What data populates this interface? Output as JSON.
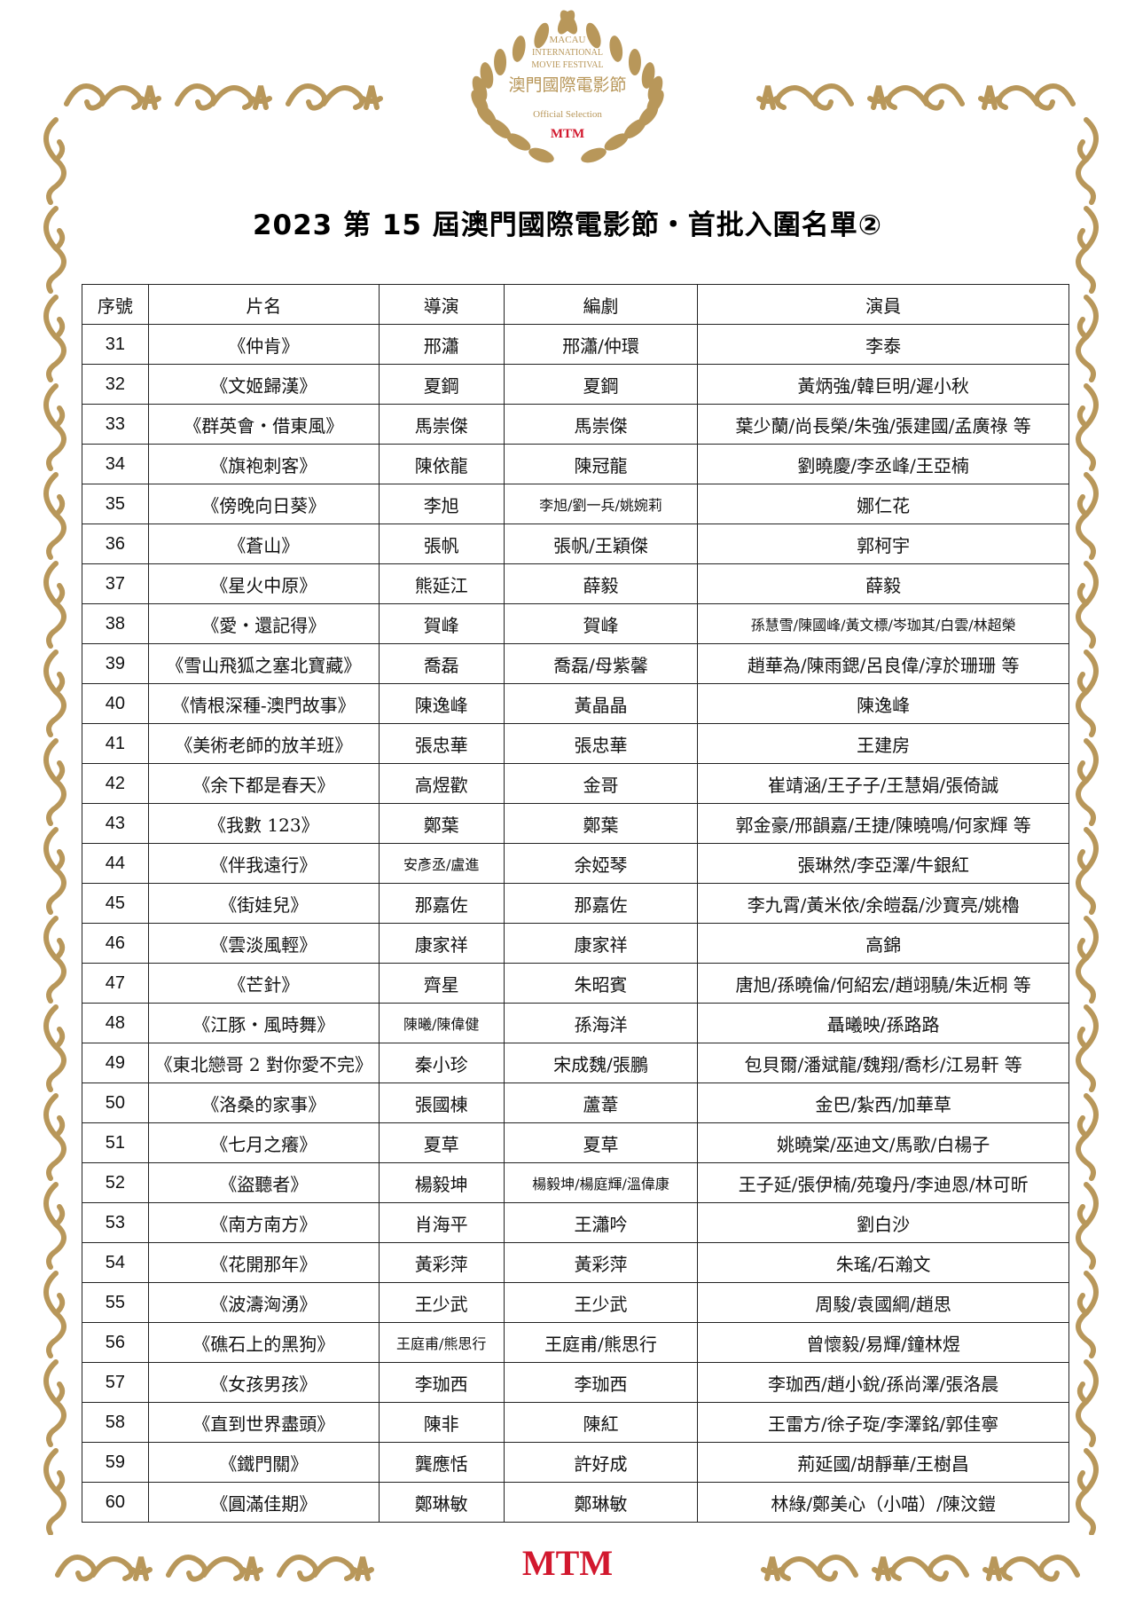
{
  "logo": {
    "line1": "MACAU",
    "line2": "INTERNATIONAL",
    "line3": "MOVIE FESTIVAL",
    "chinese": "澳門國際電影節",
    "selection": "Official Selection",
    "brand": "MTM"
  },
  "title": "2023 第 15 屆澳門國際電影節・首批入圍名單②",
  "colors": {
    "gold": "#b8975a",
    "brand_red": "#d2182e"
  },
  "table": {
    "headers": [
      "序號",
      "片名",
      "導演",
      "編劇",
      "演員"
    ],
    "rows": [
      [
        "31",
        "《仲肯》",
        "邢瀟",
        "邢瀟/仲環",
        "李泰"
      ],
      [
        "32",
        "《文姬歸漢》",
        "夏鋼",
        "夏鋼",
        "黃炳強/韓巨明/遲小秋"
      ],
      [
        "33",
        "《群英會・借東風》",
        "馬崇傑",
        "馬崇傑",
        "葉少蘭/尚長榮/朱強/張建國/孟廣祿 等"
      ],
      [
        "34",
        "《旗袍刺客》",
        "陳依龍",
        "陳冠龍",
        "劉曉慶/李丞峰/王亞楠"
      ],
      [
        "35",
        "《傍晚向日葵》",
        "李旭",
        "李旭/劉一兵/姚婉莉",
        "娜仁花"
      ],
      [
        "36",
        "《蒼山》",
        "張帆",
        "張帆/王穎傑",
        "郭柯宇"
      ],
      [
        "37",
        "《星火中原》",
        "熊延江",
        "薛毅",
        "薛毅"
      ],
      [
        "38",
        "《愛・還記得》",
        "賀峰",
        "賀峰",
        "孫慧雪/陳國峰/黃文標/岑珈其/白雲/林超榮"
      ],
      [
        "39",
        "《雪山飛狐之塞北寶藏》",
        "喬磊",
        "喬磊/母紫馨",
        "趙華為/陳雨鍶/呂良偉/淳於珊珊 等"
      ],
      [
        "40",
        "《情根深種-澳門故事》",
        "陳逸峰",
        "黃晶晶",
        "陳逸峰"
      ],
      [
        "41",
        "《美術老師的放羊班》",
        "張忠華",
        "張忠華",
        "王建房"
      ],
      [
        "42",
        "《余下都是春天》",
        "高煜歡",
        "金哥",
        "崔靖涵/王子子/王慧娟/張倚誠"
      ],
      [
        "43",
        "《我數 123》",
        "鄭葉",
        "鄭葉",
        "郭金豪/邢韻嘉/王捷/陳曉鳴/何家輝 等"
      ],
      [
        "44",
        "《伴我遠行》",
        "安彥丞/盧進",
        "余婭琴",
        "張琳然/李亞澤/牛銀紅"
      ],
      [
        "45",
        "《街娃兒》",
        "那嘉佐",
        "那嘉佐",
        "李九霄/黃米依/余皚磊/沙寶亮/姚櫓"
      ],
      [
        "46",
        "《雲淡風輕》",
        "康家祥",
        "康家祥",
        "高錦"
      ],
      [
        "47",
        "《芒針》",
        "齊星",
        "朱昭賓",
        "唐旭/孫曉倫/何紹宏/趙翊驍/朱近桐 等"
      ],
      [
        "48",
        "《江豚・風時舞》",
        "陳曦/陳偉健",
        "孫海洋",
        "聶曦映/孫路路"
      ],
      [
        "49",
        "《東北戀哥 2 對你愛不完》",
        "秦小珍",
        "宋成魏/張鵬",
        "包貝爾/潘斌龍/魏翔/喬杉/江易軒 等"
      ],
      [
        "50",
        "《洛桑的家事》",
        "張國棟",
        "蘆葦",
        "金巴/紮西/加華草"
      ],
      [
        "51",
        "《七月之癢》",
        "夏草",
        "夏草",
        "姚曉棠/巫迪文/馬歌/白楊子"
      ],
      [
        "52",
        "《盜聽者》",
        "楊毅坤",
        "楊毅坤/楊庭輝/溫偉康",
        "王子延/張伊楠/苑瓊丹/李迪恩/林可昕"
      ],
      [
        "53",
        "《南方南方》",
        "肖海平",
        "王瀟吟",
        "劉白沙"
      ],
      [
        "54",
        "《花開那年》",
        "黃彩萍",
        "黃彩萍",
        "朱瑤/石瀚文"
      ],
      [
        "55",
        "《波濤洶湧》",
        "王少武",
        "王少武",
        "周駿/袁國綱/趙思"
      ],
      [
        "56",
        "《礁石上的黑狗》",
        "王庭甫/熊思行",
        "王庭甫/熊思行",
        "曾懷毅/易輝/鐘林煜"
      ],
      [
        "57",
        "《女孩男孩》",
        "李珈西",
        "李珈西",
        "李珈西/趙小銳/孫尚澤/張洛晨"
      ],
      [
        "58",
        "《直到世界盡頭》",
        "陳非",
        "陳紅",
        "王雷方/徐子琁/李澤銘/郭佳寧"
      ],
      [
        "59",
        "《鐵門關》",
        "龔應恬",
        "許好成",
        "荊延國/胡靜華/王樹昌"
      ],
      [
        "60",
        "《圓滿佳期》",
        "鄭琳敏",
        "鄭琳敏",
        "林綠/鄭美心（小喵）/陳汶鎧"
      ]
    ]
  },
  "footer": {
    "brand": "MTM"
  }
}
